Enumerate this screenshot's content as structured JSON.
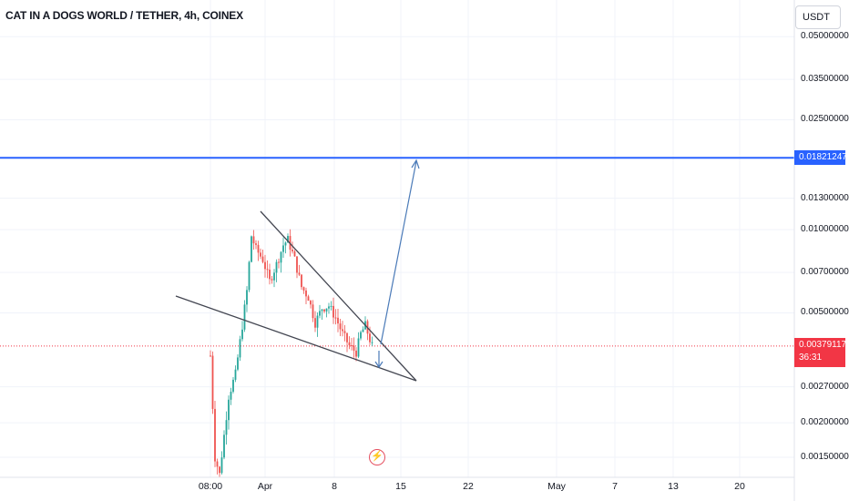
{
  "header": {
    "title": "CAT IN A DOGS WORLD / TETHER, 4h, COINEX",
    "currency_label": "USDT"
  },
  "colors": {
    "up": "#26a69a",
    "down": "#ef5350",
    "resistance_line": "#2962ff",
    "current_price_line": "#f23645",
    "trendline": "#434651",
    "projection_arrow": "#4a7ab8"
  },
  "chart_data": {
    "type": "candlestick",
    "symbol": "CAT IN A DOGS WORLD / TETHER",
    "interval": "4h",
    "exchange": "COINEX",
    "y_scale": "log",
    "ylim": [
      0.00125,
      0.05
    ],
    "y_ticks": [
      "0.05000000",
      "0.03500000",
      "0.02500000",
      "0.01300000",
      "0.01000000",
      "0.00700000",
      "0.00500000",
      "0.00270000",
      "0.00200000",
      "0.00150000"
    ],
    "x_ticks": [
      "08:00",
      "Apr",
      "8",
      "15",
      "22",
      "May",
      "7",
      "13",
      "20"
    ],
    "resistance_level": 0.01821247,
    "resistance_label": "0.01821247",
    "current_price": 0.00379117,
    "current_price_label": "0.00379117",
    "countdown": "36:31",
    "candles_summary": {
      "first_low": 0.0013,
      "peak_high": 0.01,
      "last_close": 0.00379117
    },
    "annotations": [
      {
        "type": "trendline",
        "role": "upper-wedge",
        "from": [
          "Apr-1",
          0.0115
        ],
        "to": [
          "Apr-14",
          0.0028
        ]
      },
      {
        "type": "trendline",
        "role": "lower-wedge",
        "from": [
          "Mar-26",
          0.0058
        ],
        "to": [
          "Apr-14",
          0.0028
        ]
      },
      {
        "type": "arrow",
        "role": "breakout-projection",
        "from": [
          "Apr-11",
          0.0038
        ],
        "to": [
          "Apr-16",
          0.0182
        ]
      },
      {
        "type": "arrow",
        "role": "short-dip",
        "from": [
          "Apr-11",
          0.0038
        ],
        "to": [
          "Apr-11",
          0.0032
        ]
      }
    ]
  }
}
